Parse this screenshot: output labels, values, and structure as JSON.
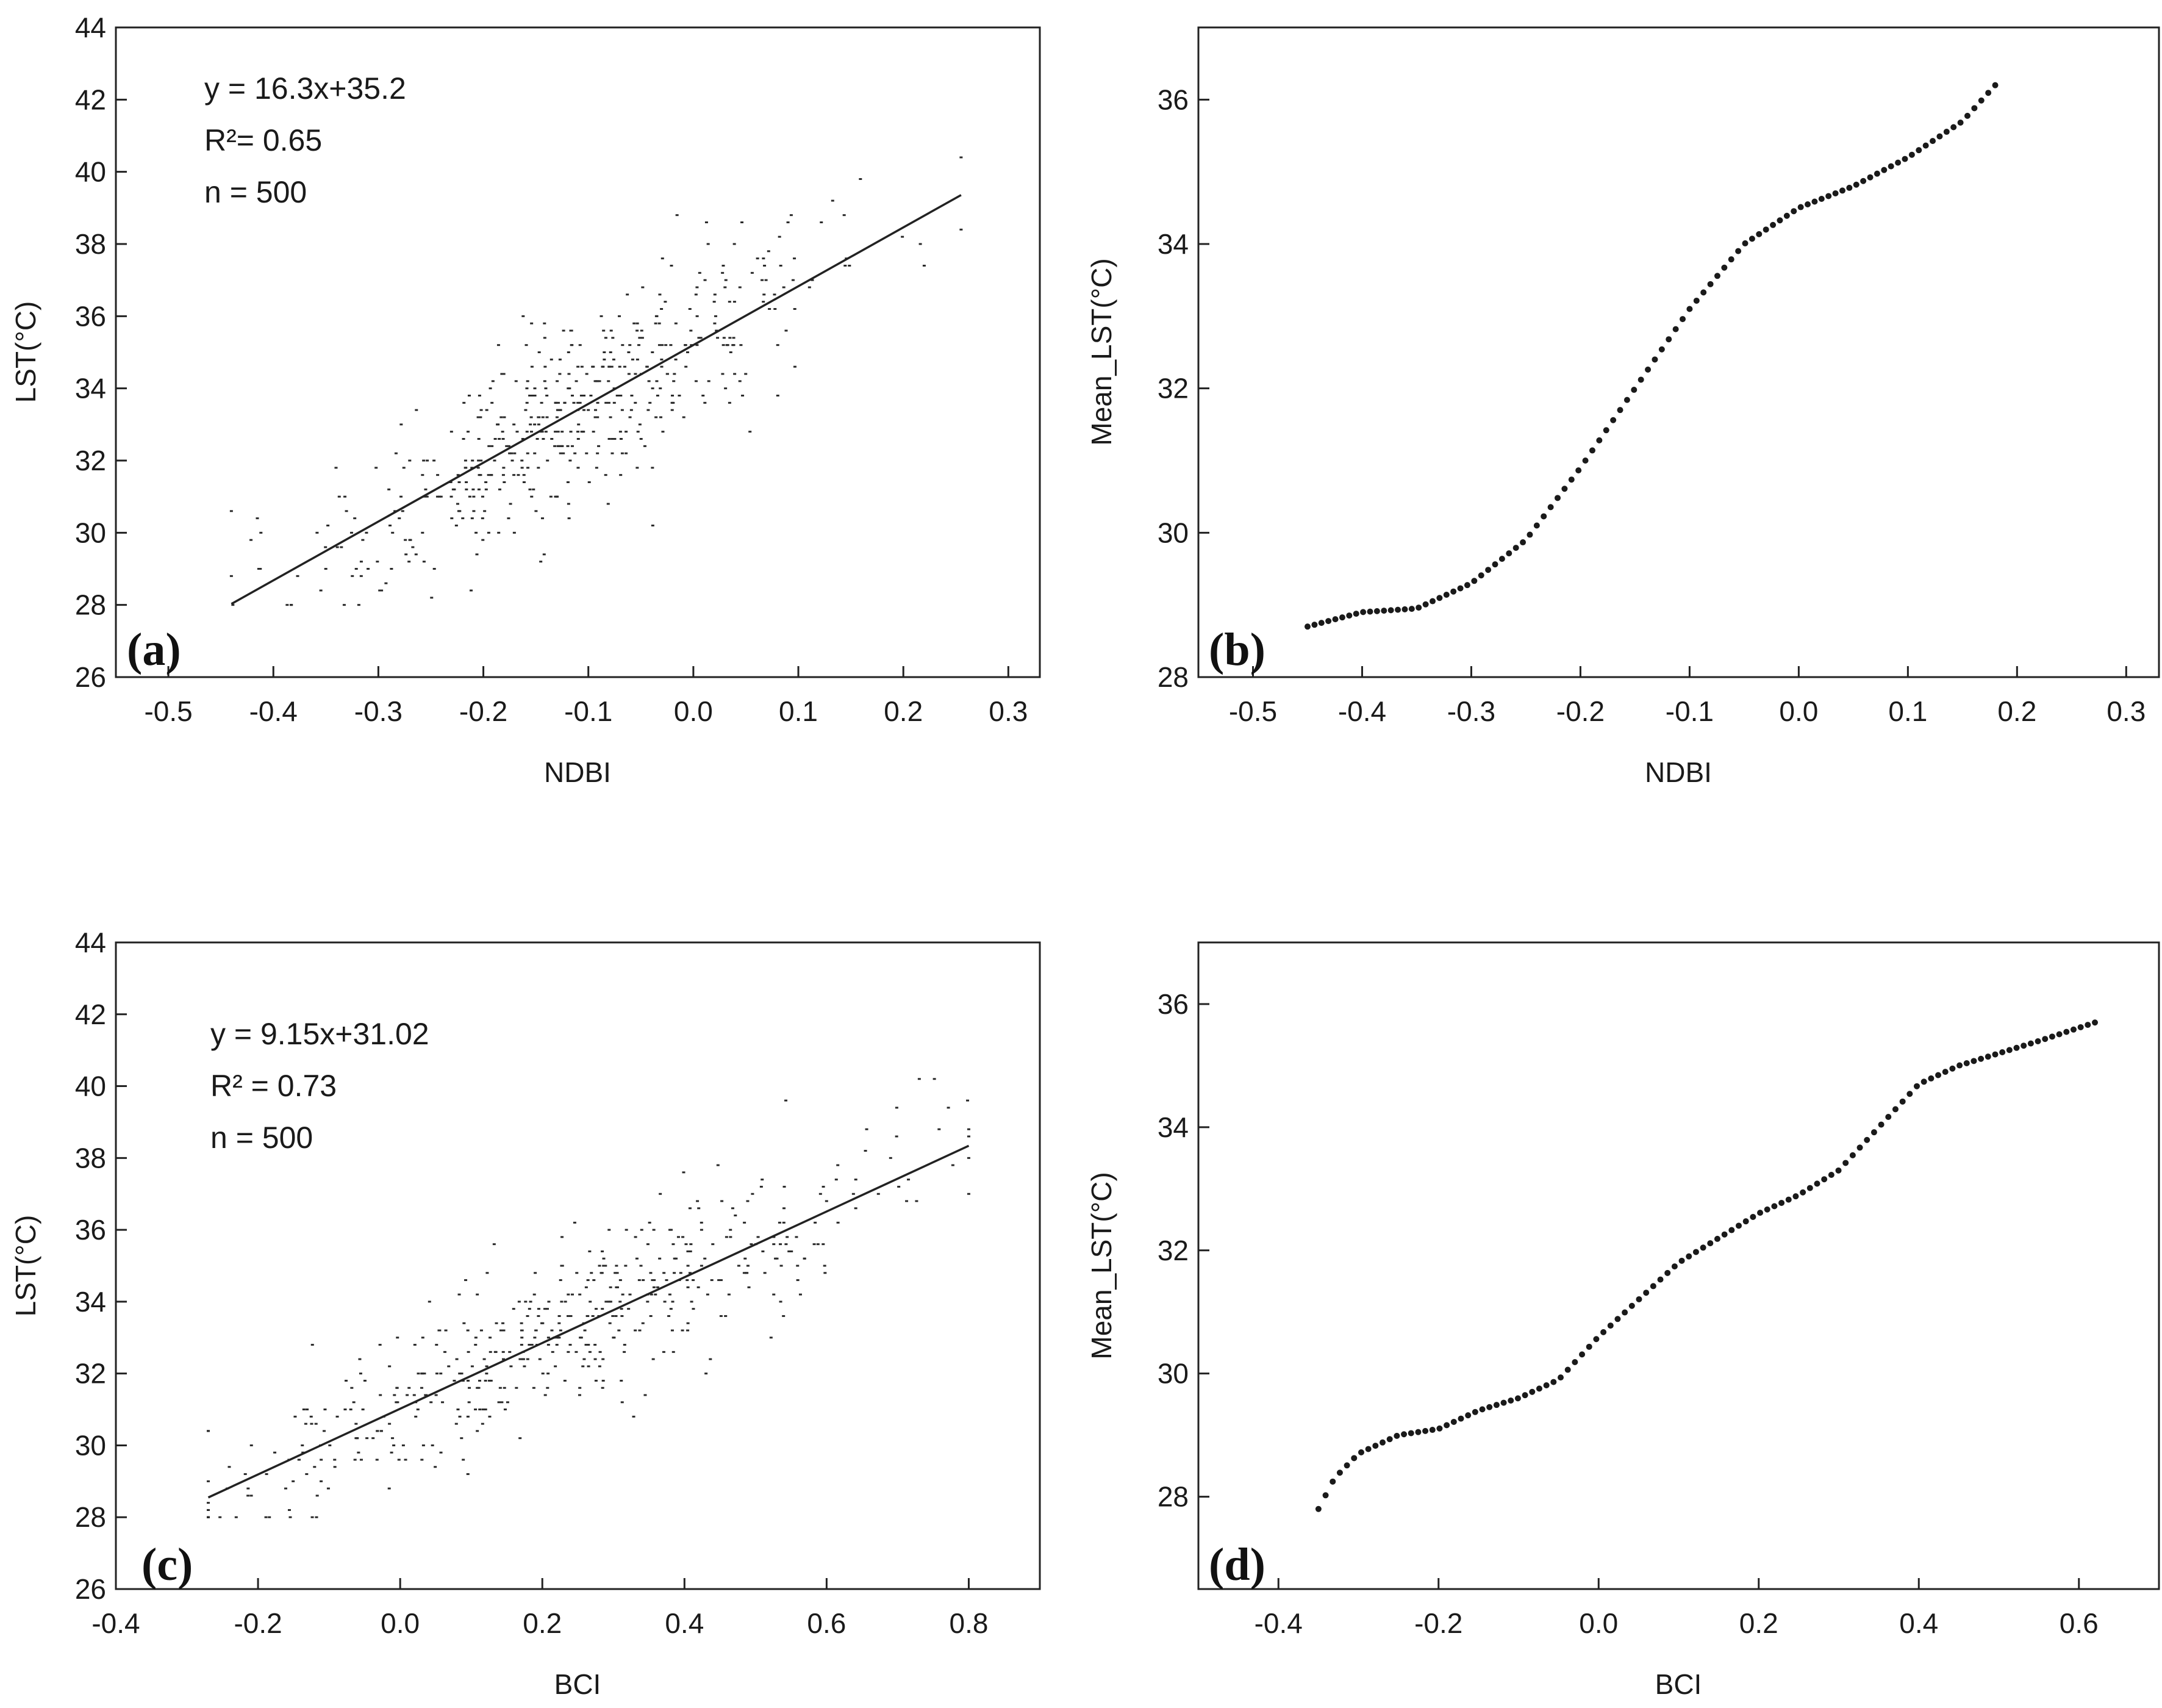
{
  "chart_data": [
    {
      "id": "a",
      "type": "scatter",
      "panel_label": "a",
      "xlabel": "NDBI",
      "ylabel": "LST(°C)",
      "xlim": [
        -0.55,
        0.33
      ],
      "ylim": [
        26,
        44
      ],
      "xticks": [
        -0.5,
        -0.4,
        -0.3,
        -0.2,
        -0.1,
        0.0,
        0.1,
        0.2,
        0.3
      ],
      "yticks": [
        26,
        28,
        30,
        32,
        34,
        36,
        38,
        40,
        42,
        44
      ],
      "tick_decimals": 1,
      "annotations": [
        "y = 16.3x+35.2",
        "R²= 0.65",
        "n = 500"
      ],
      "fit": {
        "slope": 16.3,
        "intercept": 35.2,
        "x_range": [
          -0.44,
          0.255
        ]
      },
      "scatter": {
        "n": 500,
        "x_range": [
          -0.44,
          0.255
        ],
        "x_mean": -0.11,
        "x_sd": 0.13,
        "residual_sd": 1.3,
        "y_min": 28.0,
        "y_max": 42.0,
        "y_step": 0.2
      }
    },
    {
      "id": "b",
      "type": "scatter",
      "panel_label": "b",
      "xlabel": "NDBI",
      "ylabel": "Mean_LST(°C)",
      "xlim": [
        -0.55,
        0.33
      ],
      "ylim": [
        28,
        37
      ],
      "xticks": [
        -0.5,
        -0.4,
        -0.3,
        -0.2,
        -0.1,
        0.0,
        0.1,
        0.2,
        0.3
      ],
      "yticks": [
        28,
        30,
        32,
        34,
        36
      ],
      "tick_decimals": 1,
      "curve": {
        "x": [
          -0.45,
          -0.4,
          -0.35,
          -0.3,
          -0.25,
          -0.2,
          -0.15,
          -0.1,
          -0.05,
          0.0,
          0.05,
          0.1,
          0.15,
          0.18
        ],
        "y": [
          28.7,
          28.9,
          28.95,
          29.3,
          29.9,
          30.9,
          32.0,
          33.1,
          34.0,
          34.5,
          34.8,
          35.2,
          35.7,
          36.2
        ],
        "n_points": 100
      }
    },
    {
      "id": "c",
      "type": "scatter",
      "panel_label": "c",
      "xlabel": "BCI",
      "ylabel": "LST(°C)",
      "xlim": [
        -0.4,
        0.9
      ],
      "ylim": [
        26,
        44
      ],
      "xticks": [
        -0.4,
        -0.2,
        0.0,
        0.2,
        0.4,
        0.6,
        0.8
      ],
      "yticks": [
        26,
        28,
        30,
        32,
        34,
        36,
        38,
        40,
        42,
        44
      ],
      "tick_decimals": 1,
      "annotations": [
        "y = 9.15x+31.02",
        "R² = 0.73",
        "n = 500"
      ],
      "fit": {
        "slope": 9.15,
        "intercept": 31.02,
        "x_range": [
          -0.27,
          0.8
        ]
      },
      "scatter": {
        "n": 500,
        "x_range": [
          -0.27,
          0.8
        ],
        "x_mean": 0.22,
        "x_sd": 0.24,
        "residual_sd": 1.2,
        "y_min": 28.0,
        "y_max": 42.0,
        "y_step": 0.2
      }
    },
    {
      "id": "d",
      "type": "scatter",
      "panel_label": "d",
      "xlabel": "BCI",
      "ylabel": "Mean_LST(°C)",
      "xlim": [
        -0.5,
        0.7
      ],
      "ylim": [
        26.5,
        37
      ],
      "xticks": [
        -0.4,
        -0.2,
        0.0,
        0.2,
        0.4,
        0.6
      ],
      "yticks": [
        28,
        30,
        32,
        34,
        36
      ],
      "tick_decimals": 1,
      "curve": {
        "x": [
          -0.35,
          -0.33,
          -0.3,
          -0.25,
          -0.2,
          -0.15,
          -0.1,
          -0.05,
          0.0,
          0.05,
          0.1,
          0.15,
          0.2,
          0.25,
          0.3,
          0.35,
          0.4,
          0.45,
          0.5,
          0.55,
          0.62
        ],
        "y": [
          27.8,
          28.3,
          28.7,
          29.0,
          29.1,
          29.4,
          29.6,
          29.9,
          30.6,
          31.2,
          31.8,
          32.2,
          32.6,
          32.9,
          33.3,
          34.0,
          34.7,
          35.0,
          35.2,
          35.4,
          35.7
        ],
        "n_points": 110
      }
    }
  ]
}
